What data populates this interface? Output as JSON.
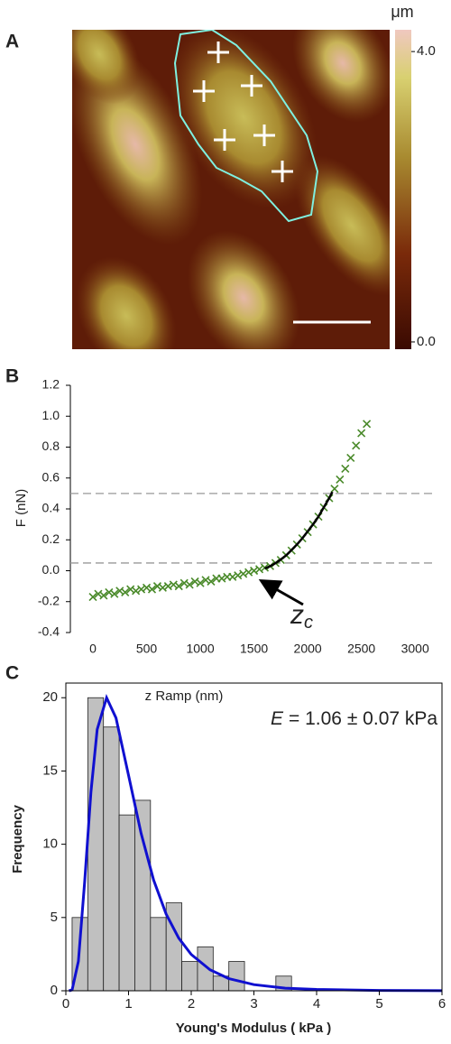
{
  "chart_data": [
    {
      "type": "image",
      "panel_label": "A",
      "colorbar": {
        "unit": "μm",
        "lim": [
          -0.1,
          4.3
        ],
        "ticks": [
          {
            "value": 4,
            "label": "4.0"
          },
          {
            "value": 0,
            "label": "0.0"
          }
        ]
      }
    },
    {
      "type": "scatter",
      "panel_label": "B",
      "x_label": "z Ramp (nm)",
      "y_label": "F (nN)",
      "xlim": [
        -210,
        3200
      ],
      "ylim": [
        -0.4,
        1.2
      ],
      "xticks": [
        0,
        500,
        1000,
        1500,
        2000,
        2500,
        3000
      ],
      "yticks": [
        1.2,
        {
          "value": 1.0,
          "label": "1.0"
        },
        0.8,
        0.6,
        0.4,
        0.2,
        {
          "value": 0.0,
          "label": "0.0"
        },
        -0.2,
        -0.4
      ],
      "hlines": [
        0.5,
        0.05
      ],
      "series": [
        {
          "color": "#4a8a2a",
          "marker": "x",
          "x": [
            0,
            50,
            100,
            150,
            200,
            250,
            300,
            350,
            400,
            450,
            500,
            550,
            600,
            650,
            700,
            750,
            800,
            850,
            900,
            950,
            1000,
            1050,
            1100,
            1150,
            1200,
            1250,
            1300,
            1350,
            1400,
            1450,
            1500,
            1550,
            1600,
            1650,
            1700,
            1750,
            1800,
            1850,
            1900,
            1950,
            2000,
            2050,
            2100,
            2150,
            2200,
            2250,
            2300,
            2350,
            2400,
            2450,
            2500,
            2550
          ],
          "values": [
            -0.17,
            -0.15,
            -0.16,
            -0.14,
            -0.15,
            -0.13,
            -0.14,
            -0.12,
            -0.13,
            -0.12,
            -0.11,
            -0.12,
            -0.1,
            -0.11,
            -0.1,
            -0.09,
            -0.1,
            -0.08,
            -0.09,
            -0.07,
            -0.08,
            -0.06,
            -0.07,
            -0.05,
            -0.05,
            -0.04,
            -0.04,
            -0.03,
            -0.02,
            -0.01,
            0.0,
            0.01,
            0.02,
            0.03,
            0.05,
            0.07,
            0.1,
            0.13,
            0.17,
            0.21,
            0.25,
            0.3,
            0.35,
            0.41,
            0.47,
            0.53,
            0.59,
            0.66,
            0.73,
            0.81,
            0.89,
            0.95
          ]
        },
        {
          "color": "#000000",
          "marker": "line",
          "x": [
            1600,
            1650,
            1700,
            1750,
            1800,
            1850,
            1900,
            1950,
            2000,
            2050,
            2100,
            2150,
            2200,
            2230
          ],
          "values": [
            0.014,
            0.029,
            0.049,
            0.073,
            0.1,
            0.134,
            0.17,
            0.21,
            0.255,
            0.3,
            0.35,
            0.41,
            0.47,
            0.51
          ]
        }
      ],
      "annotation": {
        "text": "z",
        "subscript": "c"
      }
    },
    {
      "type": "histogram",
      "panel_label": "C",
      "x_label": "Young's Modulus ( kPa )",
      "y_label": "Frequency",
      "xlim": [
        0,
        6
      ],
      "ylim": [
        0,
        21
      ],
      "xticks": [
        0,
        1,
        2,
        3,
        4,
        5,
        6
      ],
      "yticks": [
        0,
        5,
        10,
        15,
        20
      ],
      "color": "#c0c0c0",
      "bins": [
        0.1,
        0.35,
        0.6,
        0.85,
        1.1,
        1.35,
        1.6,
        1.85,
        2.1,
        2.35,
        2.6,
        2.85,
        3.1,
        3.35,
        3.6
      ],
      "counts": [
        5,
        20,
        18,
        12,
        13,
        5,
        6,
        2,
        3,
        1,
        2,
        0,
        0,
        1
      ],
      "curve": {
        "color": "#1010d0",
        "x": [
          0.05,
          0.1,
          0.2,
          0.3,
          0.4,
          0.5,
          0.65,
          0.8,
          1.0,
          1.2,
          1.4,
          1.6,
          1.8,
          2.0,
          2.3,
          2.6,
          3.0,
          3.5,
          4.0,
          5.0,
          6.0
        ],
        "values": [
          0,
          0.06,
          2.01,
          7.43,
          13.55,
          17.83,
          20.0,
          18.62,
          14.71,
          10.75,
          7.56,
          5.23,
          3.6,
          2.48,
          1.43,
          0.83,
          0.42,
          0.18,
          0.09,
          0.02,
          0.01
        ]
      },
      "annotation": {
        "var": "E",
        "text": "= 1.06 ± 0.07 kPa"
      }
    }
  ]
}
